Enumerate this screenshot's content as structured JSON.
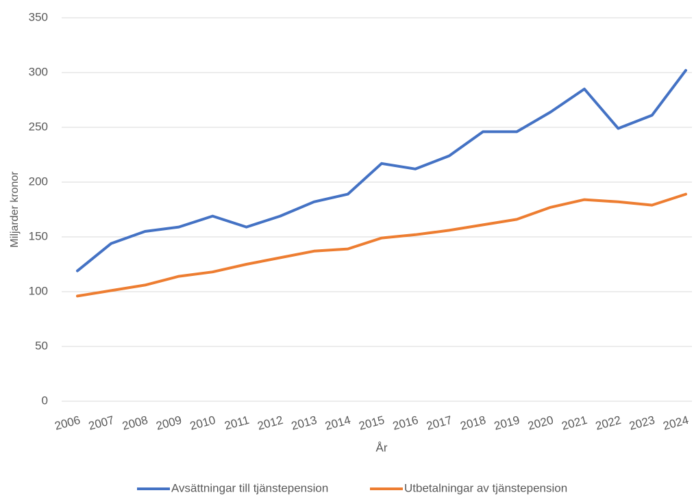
{
  "chart_data": {
    "type": "line",
    "x_label": "År",
    "y_label": "Miljarder kronor",
    "categories": [
      "2006",
      "2007",
      "2008",
      "2009",
      "2010",
      "2011",
      "2012",
      "2013",
      "2014",
      "2015",
      "2016",
      "2017",
      "2018",
      "2019",
      "2020",
      "2021",
      "2022",
      "2023",
      "2024"
    ],
    "series": [
      {
        "name": "Avsättningar till tjänstepension",
        "color": "#4472c4",
        "values": [
          119,
          144,
          155,
          159,
          169,
          159,
          169,
          182,
          189,
          217,
          212,
          224,
          246,
          246,
          264,
          285,
          249,
          261,
          302
        ]
      },
      {
        "name": "Utbetalningar av tjänstepension",
        "color": "#ed7d31",
        "values": [
          96,
          101,
          106,
          114,
          118,
          125,
          131,
          137,
          139,
          149,
          152,
          156,
          161,
          166,
          177,
          184,
          182,
          179,
          189
        ]
      }
    ],
    "ylim": [
      0,
      350
    ],
    "yticks": [
      0,
      50,
      100,
      150,
      200,
      250,
      300,
      350
    ],
    "grid": true,
    "legend": "bottom"
  }
}
